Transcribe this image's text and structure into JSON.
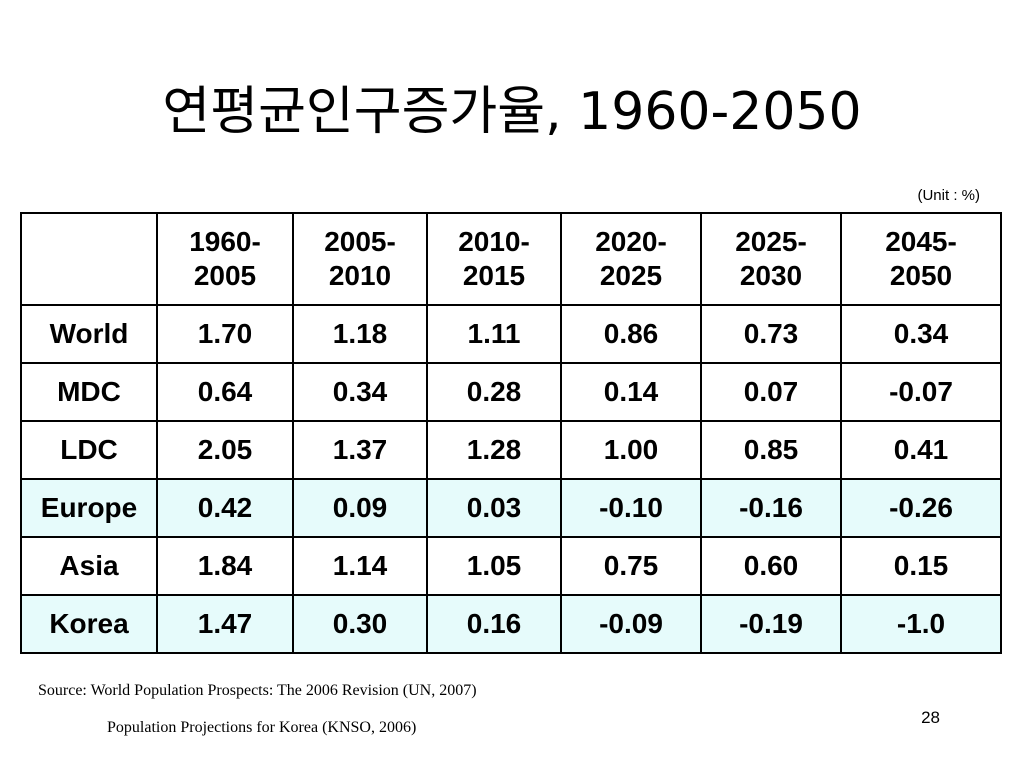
{
  "slide": {
    "title": "연평균인구증가율, 1960-2050",
    "unit_note": "(Unit : %)",
    "page_number": "28"
  },
  "table": {
    "corner": "",
    "columns": [
      {
        "line1": "1960-",
        "line2": "2005"
      },
      {
        "line1": "2005-",
        "line2": "2010"
      },
      {
        "line1": "2010-",
        "line2": "2015"
      },
      {
        "line1": "2020-",
        "line2": "2025"
      },
      {
        "line1": "2025-",
        "line2": "2030"
      },
      {
        "line1": "2045-",
        "line2": "2050"
      }
    ],
    "rows": [
      {
        "label": "World",
        "values": [
          "1.70",
          "1.18",
          "1.11",
          "0.86",
          "0.73",
          "0.34"
        ],
        "highlight": false
      },
      {
        "label": "MDC",
        "values": [
          "0.64",
          "0.34",
          "0.28",
          "0.14",
          "0.07",
          "-0.07"
        ],
        "highlight": false
      },
      {
        "label": "LDC",
        "values": [
          "2.05",
          "1.37",
          "1.28",
          "1.00",
          "0.85",
          "0.41"
        ],
        "highlight": false
      },
      {
        "label": "Europe",
        "values": [
          "0.42",
          "0.09",
          "0.03",
          "-0.10",
          "-0.16",
          "-0.26"
        ],
        "highlight": true
      },
      {
        "label": "Asia",
        "values": [
          "1.84",
          "1.14",
          "1.05",
          "0.75",
          "0.60",
          "0.15"
        ],
        "highlight": false
      },
      {
        "label": "Korea",
        "values": [
          "1.47",
          "0.30",
          "0.16",
          "-0.09",
          "-0.19",
          "-1.0"
        ],
        "highlight": true
      }
    ],
    "highlight_color": "#e6fbfb"
  },
  "footer": {
    "source_line1": "Source: World Population Prospects: The 2006 Revision (UN, 2007)",
    "source_line2": "Population Projections for Korea (KNSO, 2006)"
  }
}
